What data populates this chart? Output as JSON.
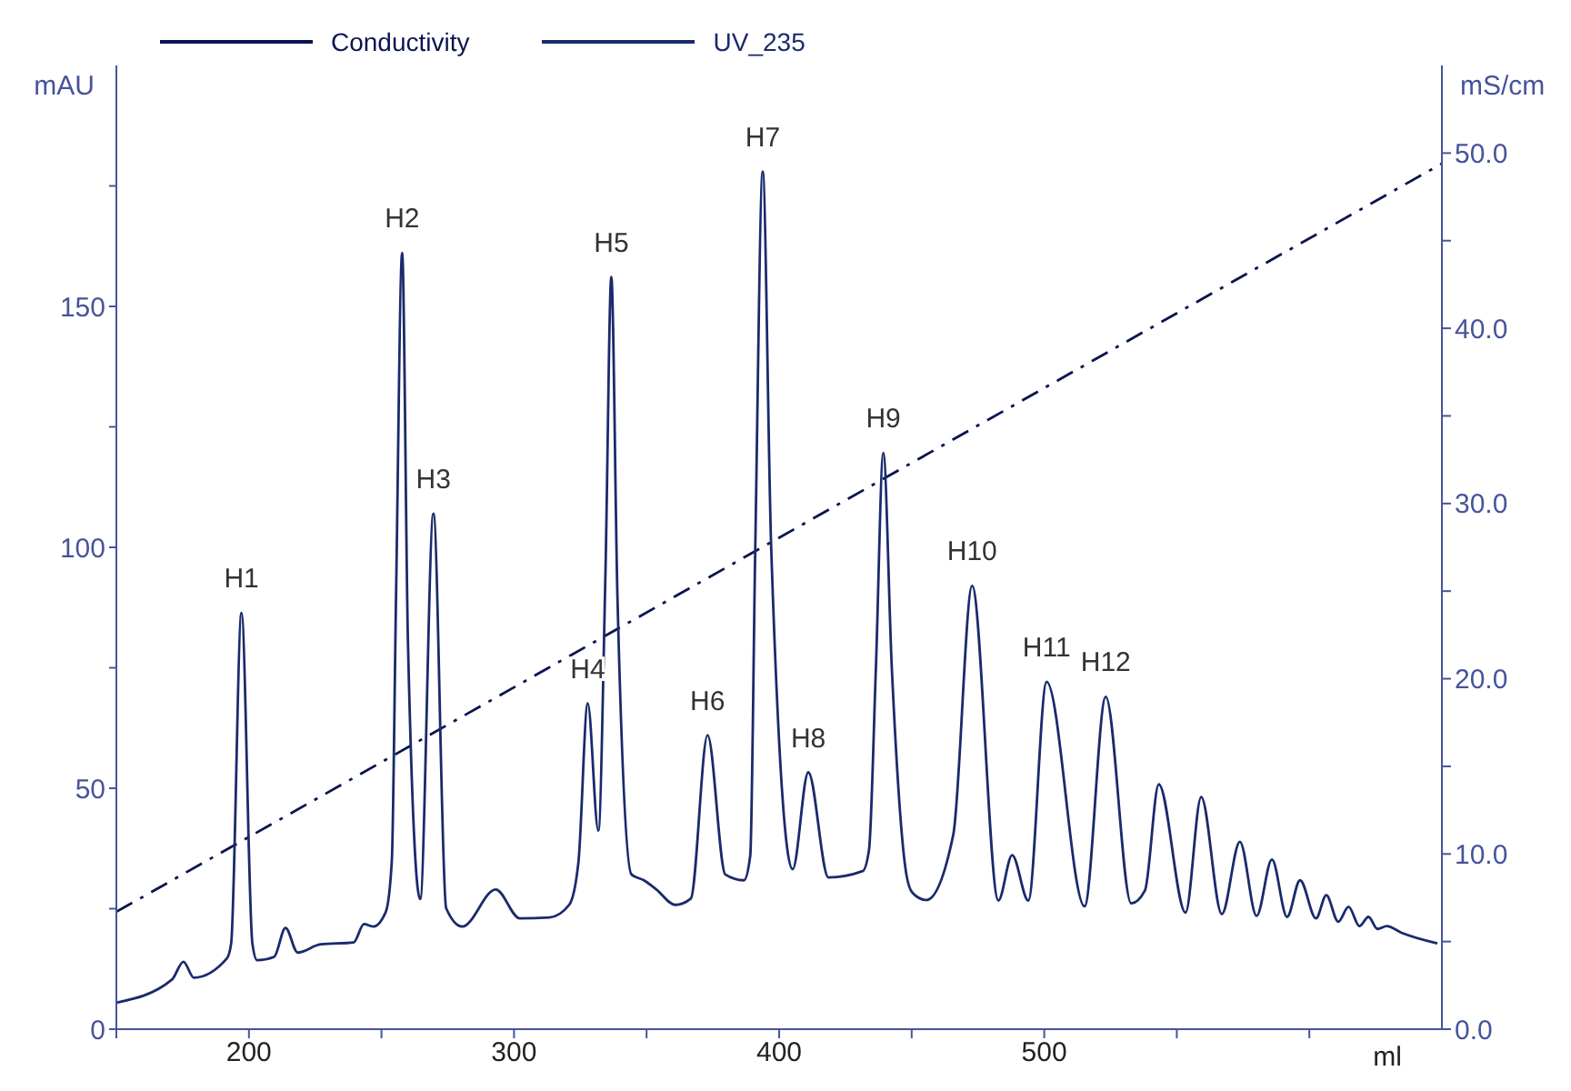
{
  "chart_data": {
    "type": "line",
    "xlabel": "ml",
    "ylabel": "mAU",
    "y2label": "mS/cm",
    "xlim": [
      150,
      650
    ],
    "xticks": [
      {
        "value": 150,
        "label": null
      },
      200,
      {
        "value": 250,
        "label": null
      },
      300,
      {
        "value": 350,
        "label": null
      },
      400,
      {
        "value": 450,
        "label": null
      },
      500,
      {
        "value": 550,
        "label": null
      },
      {
        "value": 600,
        "label": null
      }
    ],
    "ylim": [
      0,
      200
    ],
    "yticks": [
      0,
      {
        "value": 25,
        "label": null
      },
      50,
      {
        "value": 75,
        "label": null
      },
      100,
      {
        "value": 125,
        "label": null
      },
      150,
      {
        "value": 175,
        "label": null
      }
    ],
    "y2lim": [
      0,
      55
    ],
    "y2ticks": [
      {
        "value": 0,
        "label": "0.0"
      },
      {
        "value": 5,
        "label": null
      },
      {
        "value": 10,
        "label": "10.0"
      },
      {
        "value": 15,
        "label": null
      },
      {
        "value": 20,
        "label": "20.0"
      },
      {
        "value": 25,
        "label": null
      },
      {
        "value": 30,
        "label": "30.0"
      },
      {
        "value": 35,
        "label": null
      },
      {
        "value": 40,
        "label": "40.0"
      },
      {
        "value": 45,
        "label": null
      },
      {
        "value": 50,
        "label": "50.0"
      }
    ],
    "grid": false,
    "legend": "top left",
    "marker": "none",
    "series": [
      {
        "name": "Conductivity",
        "color": "#0a1450",
        "axis": "y2",
        "line_style": "dashed",
        "x": [
          150,
          650
        ],
        "values": [
          6.7,
          49.4
        ]
      },
      {
        "name": "UV_235",
        "color": "#1a2a6c",
        "line_style": "solid",
        "x": [
          150,
          171,
          175.3,
          179.2,
          191.7,
          193.3,
          197.2,
          201.3,
          203.1,
          209.5,
          213.8,
          218.4,
          227,
          239.5,
          243.4,
          246.9,
          251.6,
          253.9,
          255.5,
          257.8,
          260,
          264.6,
          269.6,
          274.4,
          280.5,
          293.1,
          302.2,
          313.4,
          320.8,
          324.3,
          327.8,
          331.8,
          334.5,
          336.7,
          339,
          344.3,
          349,
          353.7,
          360.8,
          366.7,
          373,
          379.7,
          386.7,
          389.1,
          391,
          393.8,
          397,
          405.1,
          411,
          418.6,
          431.5,
          433.9,
          436.5,
          439.3,
          442.5,
          448,
          450.3,
          455.5,
          465.7,
          472.8,
          482.7,
          487.9,
          494,
          500.9,
          515.2,
          523.2,
          532.8,
          538,
          543.2,
          553.3,
          559.2,
          567,
          573.8,
          580.1,
          585.9,
          591.6,
          596.5,
          602.5,
          606.4,
          610.9,
          614.8,
          618.9,
          622.3,
          625.7,
          629.2,
          634.8,
          648.3
        ],
        "values": [
          5.5,
          10.3,
          14,
          10.7,
          14.7,
          17.8,
          86.4,
          17.8,
          14.3,
          15,
          21,
          15.9,
          17.6,
          18,
          21.8,
          21.3,
          24.3,
          34.9,
          90,
          161.1,
          80,
          27,
          107,
          25.1,
          21.3,
          29,
          23,
          23.2,
          25.8,
          34.7,
          67.6,
          41.2,
          95,
          156.1,
          90,
          32.1,
          30.9,
          29,
          25.8,
          27.1,
          61,
          32.1,
          30.9,
          36,
          100,
          178,
          100,
          33.2,
          53.3,
          31.5,
          32.8,
          37.2,
          75,
          119.6,
          75,
          32.1,
          28.3,
          26.8,
          40.4,
          92,
          26.7,
          36.1,
          26.7,
          72.1,
          25.5,
          69,
          26.1,
          28.8,
          50.8,
          24.2,
          48.2,
          23.9,
          38.9,
          23.5,
          35.2,
          23.3,
          30.9,
          23,
          27.8,
          22.3,
          25.4,
          21.4,
          23.3,
          20.8,
          21.4,
          20,
          17.8
        ]
      }
    ],
    "annotations": [
      {
        "text": "H1",
        "x": 197.2,
        "y": 86.4
      },
      {
        "text": "H2",
        "x": 257.8,
        "y": 161.1
      },
      {
        "text": "H3",
        "x": 269.6,
        "y": 107
      },
      {
        "text": "H4",
        "x": 327.8,
        "y": 67.6
      },
      {
        "text": "H5",
        "x": 336.7,
        "y": 156.1
      },
      {
        "text": "H6",
        "x": 373,
        "y": 61
      },
      {
        "text": "H7",
        "x": 393.8,
        "y": 178
      },
      {
        "text": "H8",
        "x": 411,
        "y": 53.3
      },
      {
        "text": "H9",
        "x": 439.3,
        "y": 119.6
      },
      {
        "text": "H10",
        "x": 472.8,
        "y": 92
      },
      {
        "text": "H11",
        "x": 500.9,
        "y": 72.1
      },
      {
        "text": "H12",
        "x": 523.2,
        "y": 69
      }
    ]
  }
}
